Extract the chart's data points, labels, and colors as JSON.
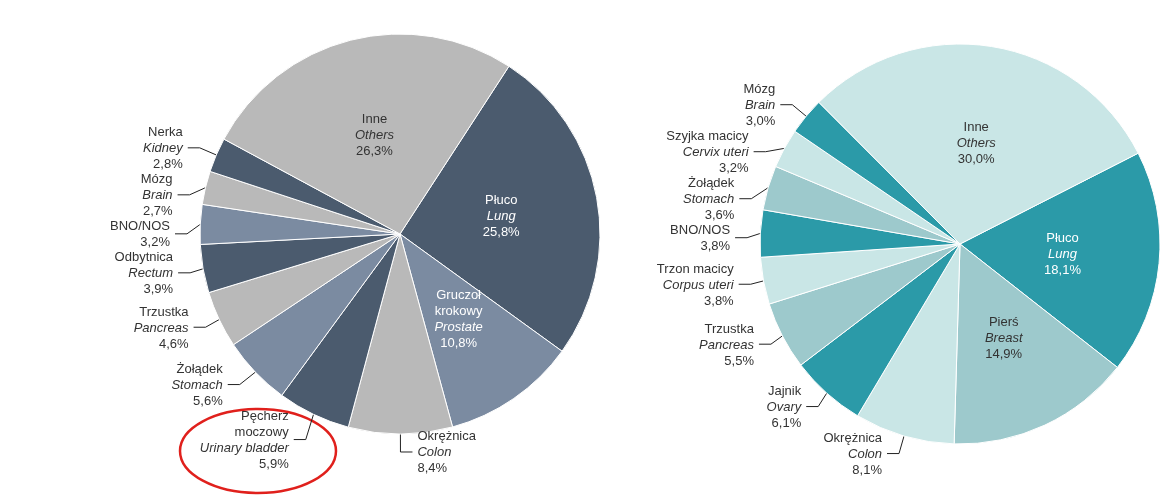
{
  "chart_data": [
    {
      "type": "pie",
      "categories": [
        "Płuco\nLung",
        "Gruczoł\nkrokowy\nProstate",
        "Okrężnica\nColon",
        "Pęcherz\nmoczowy\nUrinary bladder",
        "Żołądek\nStomach",
        "Trzustka\nPancreas",
        "Odbytnica\nRectum",
        "BNO/NOS",
        "Mózg\nBrain",
        "Nerka\nKidney",
        "Inne\nOthers"
      ],
      "values": [
        25.8,
        10.8,
        8.4,
        5.9,
        5.6,
        4.6,
        3.9,
        3.2,
        2.7,
        2.8,
        26.3
      ],
      "value_labels": [
        "25,8%",
        "10,8%",
        "8,4%",
        "5,9%",
        "5,6%",
        "4,6%",
        "3,9%",
        "3,2%",
        "2,7%",
        "2,8%",
        "26,3%"
      ],
      "colors": [
        "#4b5b6e",
        "#7b8ba1",
        "#b9b9b9",
        "#4b5b6e",
        "#7b8ba1",
        "#b9b9b9",
        "#4b5b6e",
        "#7b8ba1",
        "#b9b9b9",
        "#4b5b6e",
        "#b9b9b9"
      ],
      "legend": false
    },
    {
      "type": "pie",
      "categories": [
        "Płuco\nLung",
        "Pierś\nBreast",
        "Okrężnica\nColon",
        "Jajnik\nOvary",
        "Trzustka\nPancreas",
        "Trzon macicy\nCorpus uteri",
        "BNO/NOS",
        "Żołądek\nStomach",
        "Szyjka macicy\nCervix uteri",
        "Mózg\nBrain",
        "Inne\nOthers"
      ],
      "values": [
        18.1,
        14.9,
        8.1,
        6.1,
        5.5,
        3.8,
        3.8,
        3.6,
        3.2,
        3.0,
        30.0
      ],
      "value_labels": [
        "18,1%",
        "14,9%",
        "8,1%",
        "6,1%",
        "5,5%",
        "3,8%",
        "3,8%",
        "3,6%",
        "3,2%",
        "3,0%",
        "30,0%"
      ],
      "colors": [
        "#2b9aa8",
        "#9dc9cc",
        "#c9e6e6",
        "#2b9aa8",
        "#9dc9cc",
        "#c9e6e6",
        "#2b9aa8",
        "#9dc9cc",
        "#c9e6e6",
        "#2b9aa8",
        "#c9e6e6"
      ],
      "legend": false
    }
  ]
}
